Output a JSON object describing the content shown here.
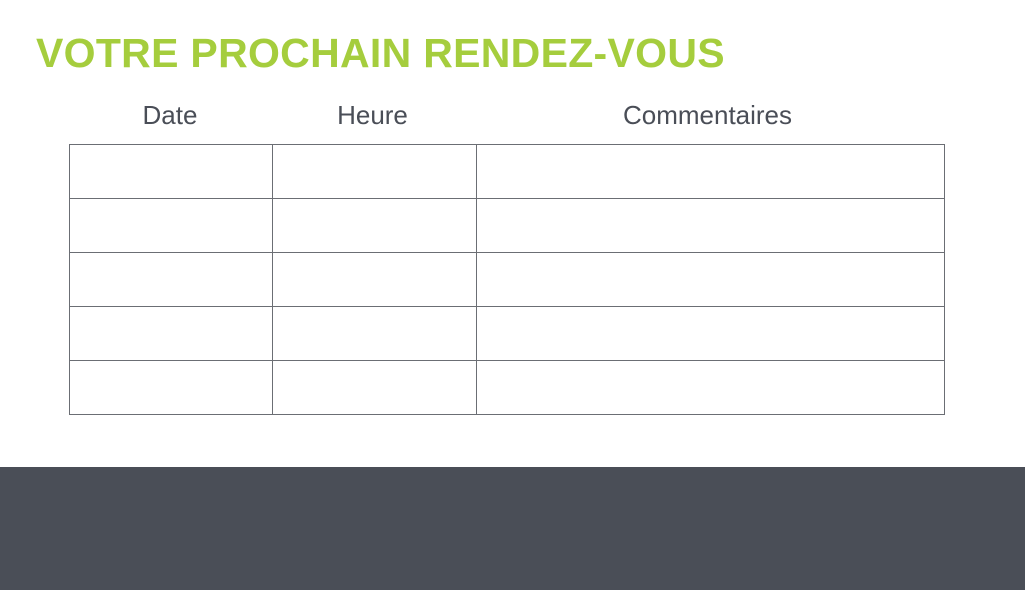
{
  "title": "VOTRE PROCHAIN RENDEZ-VOUS",
  "colors": {
    "accent": "#a5cd3d",
    "footer": "#4a4e57"
  },
  "table": {
    "headers": [
      "Date",
      "Heure",
      "Commentaires"
    ],
    "rows": [
      [
        "",
        "",
        ""
      ],
      [
        "",
        "",
        ""
      ],
      [
        "",
        "",
        ""
      ],
      [
        "",
        "",
        ""
      ],
      [
        "",
        "",
        ""
      ]
    ]
  }
}
